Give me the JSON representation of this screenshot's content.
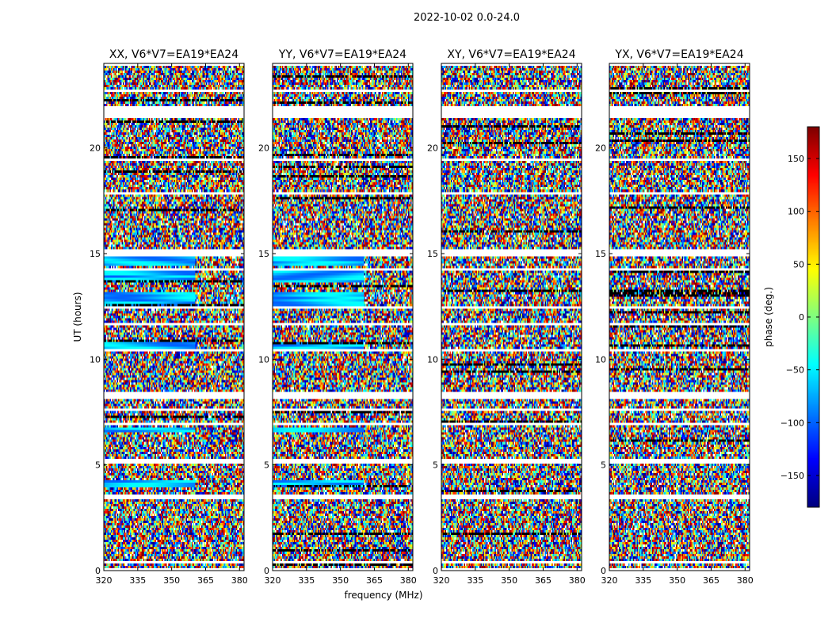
{
  "figure": {
    "suptitle": "2022-10-02 0.0-24.0",
    "colors": {
      "frame": "#000000",
      "flag": "#ffffff",
      "background": "#ffffff"
    }
  },
  "chart_data": {
    "type": "heatmap",
    "panels": [
      {
        "title": "XX, V6*V7=EA19*EA24",
        "pol": "XX"
      },
      {
        "title": "YY, V6*V7=EA19*EA24",
        "pol": "YY"
      },
      {
        "title": "XY, V6*V7=EA19*EA24",
        "pol": "XY"
      },
      {
        "title": "YX, V6*V7=EA19*EA24",
        "pol": "YX"
      }
    ],
    "xlabel": "frequency (MHz)",
    "ylabel": "UT (hours)",
    "xlim": [
      320,
      382
    ],
    "ylim": [
      0,
      24
    ],
    "xticks": [
      "320",
      "335",
      "350",
      "365",
      "380"
    ],
    "xtick_values": [
      320,
      335,
      350,
      365,
      380
    ],
    "yticks": [
      "0",
      "5",
      "10",
      "15",
      "20"
    ],
    "ytick_values": [
      0,
      5,
      10,
      15,
      20
    ],
    "colorbar": {
      "label": "phase (deg.)",
      "range": [
        -180,
        180
      ],
      "ticks": [
        "150",
        "100",
        "50",
        "0",
        "−50",
        "−100",
        "−150"
      ],
      "tick_values": [
        150,
        100,
        50,
        0,
        -50,
        -100,
        -150
      ],
      "colormap": "jet"
    },
    "flagged_ut_bands": [
      [
        0.05,
        0.12
      ],
      [
        0.32,
        0.4
      ],
      [
        1.55,
        1.62
      ],
      [
        3.4,
        3.55
      ],
      [
        5.1,
        5.25
      ],
      [
        6.85,
        7.0
      ],
      [
        7.55,
        7.65
      ],
      [
        8.15,
        8.5
      ],
      [
        10.35,
        10.45
      ],
      [
        11.65,
        11.75
      ],
      [
        12.4,
        12.55
      ],
      [
        14.25,
        14.32
      ],
      [
        14.85,
        15.25
      ],
      [
        17.8,
        17.95
      ],
      [
        19.4,
        19.5
      ],
      [
        21.4,
        21.95
      ],
      [
        22.7,
        22.8
      ],
      [
        23.9,
        24.0
      ]
    ],
    "smooth_ut_bands_parallel": [
      [
        3.9,
        4.3
      ],
      [
        6.5,
        6.8
      ],
      [
        10.45,
        10.8
      ],
      [
        12.55,
        13.2
      ],
      [
        13.6,
        14.2
      ],
      [
        14.4,
        14.85
      ]
    ]
  }
}
